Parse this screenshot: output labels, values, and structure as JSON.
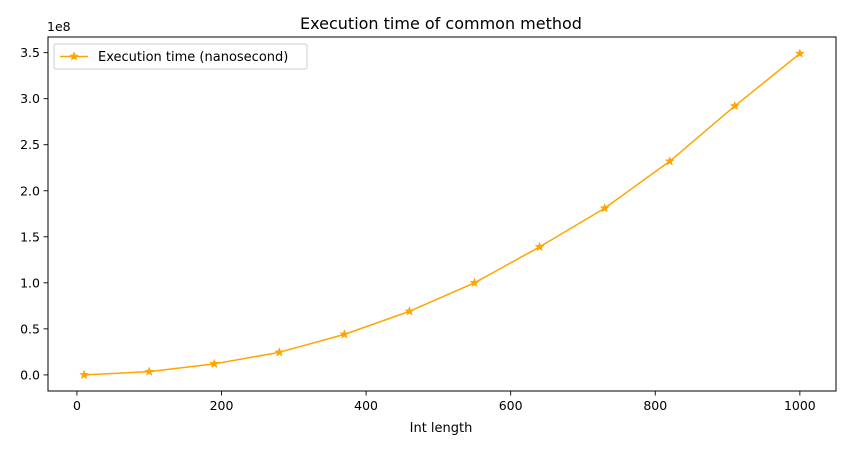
{
  "chart_data": {
    "type": "line",
    "title": "Execution time of common method",
    "xlabel": "Int length",
    "ylabel": "",
    "y_offset_label": "1e8",
    "x_ticks": [
      0,
      200,
      400,
      600,
      800,
      1000
    ],
    "x_tick_labels": [
      "0",
      "200",
      "400",
      "600",
      "800",
      "1000"
    ],
    "y_ticks": [
      0.0,
      0.5,
      1.0,
      1.5,
      2.0,
      2.5,
      3.0,
      3.5
    ],
    "y_tick_labels": [
      "0.0",
      "0.5",
      "1.0",
      "1.5",
      "2.0",
      "2.5",
      "3.0",
      "3.5"
    ],
    "xlim": [
      -40,
      1050
    ],
    "ylim": [
      -0.175,
      3.67
    ],
    "grid": false,
    "legend_position": "top-left",
    "series": [
      {
        "name": "Execution time (nanosecond)",
        "color": "#FFA500",
        "marker": "star",
        "x": [
          10,
          100,
          190,
          280,
          370,
          460,
          550,
          640,
          730,
          820,
          910,
          1000
        ],
        "y": [
          0.0,
          0.035,
          0.12,
          0.245,
          0.44,
          0.69,
          1.0,
          1.39,
          1.81,
          2.32,
          2.92,
          3.49
        ]
      }
    ]
  }
}
